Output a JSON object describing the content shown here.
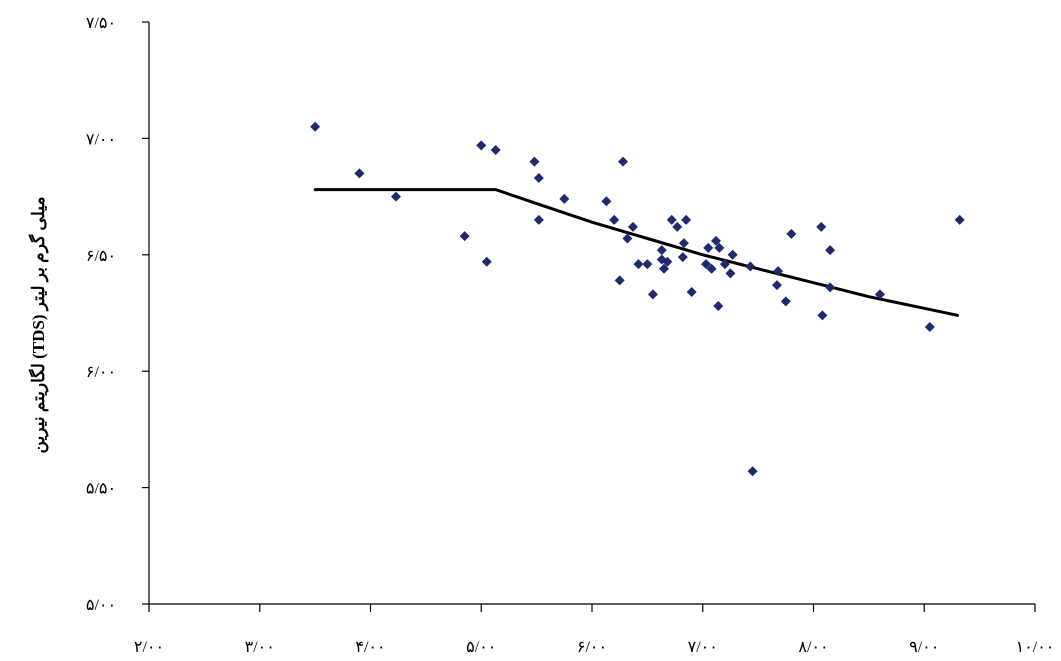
{
  "chart_data": {
    "type": "scatter",
    "ylabel": "لگاریتم نیرین (TDS) میلی گرم بر لیتر",
    "xlabel": "",
    "xlim": [
      2.0,
      10.0
    ],
    "ylim": [
      5.0,
      7.5
    ],
    "x_ticks": [
      2.0,
      3.0,
      4.0,
      5.0,
      6.0,
      7.0,
      8.0,
      9.0,
      10.0
    ],
    "y_ticks": [
      5.0,
      5.5,
      6.0,
      6.5,
      7.0,
      7.5
    ],
    "x_tick_labels": [
      "۲/۰۰",
      "۳/۰۰",
      "۴/۰۰",
      "۵/۰۰",
      "۶/۰۰",
      "۷/۰۰",
      "۸/۰۰",
      "۹/۰۰",
      "۱۰/۰۰"
    ],
    "y_tick_labels": [
      "۵/۰۰",
      "۵/۵۰",
      "۶/۰۰",
      "۶/۵۰",
      "۷/۰۰",
      "۷/۵۰"
    ],
    "grid": false,
    "marker_color": "#1f2a6e",
    "line_color": "#000000",
    "points": [
      [
        3.5,
        7.05
      ],
      [
        3.9,
        6.85
      ],
      [
        4.23,
        6.75
      ],
      [
        4.85,
        6.58
      ],
      [
        5.0,
        6.97
      ],
      [
        5.05,
        6.47
      ],
      [
        5.13,
        6.95
      ],
      [
        5.48,
        6.9
      ],
      [
        5.52,
        6.83
      ],
      [
        5.52,
        6.65
      ],
      [
        5.75,
        6.74
      ],
      [
        6.13,
        6.73
      ],
      [
        6.2,
        6.65
      ],
      [
        6.25,
        6.39
      ],
      [
        6.28,
        6.9
      ],
      [
        6.32,
        6.57
      ],
      [
        6.37,
        6.62
      ],
      [
        6.42,
        6.46
      ],
      [
        6.5,
        6.46
      ],
      [
        6.55,
        6.33
      ],
      [
        6.63,
        6.52
      ],
      [
        6.63,
        6.48
      ],
      [
        6.65,
        6.44
      ],
      [
        6.68,
        6.47
      ],
      [
        6.72,
        6.65
      ],
      [
        6.77,
        6.62
      ],
      [
        6.82,
        6.49
      ],
      [
        6.83,
        6.55
      ],
      [
        6.85,
        6.65
      ],
      [
        6.9,
        6.34
      ],
      [
        7.03,
        6.46
      ],
      [
        7.05,
        6.53
      ],
      [
        7.08,
        6.44
      ],
      [
        7.12,
        6.56
      ],
      [
        7.14,
        6.28
      ],
      [
        7.15,
        6.53
      ],
      [
        7.2,
        6.46
      ],
      [
        7.25,
        6.42
      ],
      [
        7.27,
        6.5
      ],
      [
        7.43,
        6.45
      ],
      [
        7.45,
        5.57
      ],
      [
        7.67,
        6.37
      ],
      [
        7.68,
        6.43
      ],
      [
        7.75,
        6.3
      ],
      [
        7.8,
        6.59
      ],
      [
        8.07,
        6.62
      ],
      [
        8.08,
        6.24
      ],
      [
        8.15,
        6.36
      ],
      [
        8.15,
        6.52
      ],
      [
        8.6,
        6.33
      ],
      [
        9.05,
        6.19
      ],
      [
        9.32,
        6.65
      ]
    ],
    "trend_line": [
      [
        3.5,
        6.78
      ],
      [
        5.13,
        6.78
      ],
      [
        5.5,
        6.72
      ],
      [
        6.0,
        6.64
      ],
      [
        6.5,
        6.57
      ],
      [
        7.0,
        6.5
      ],
      [
        7.5,
        6.44
      ],
      [
        8.0,
        6.38
      ],
      [
        8.5,
        6.32
      ],
      [
        9.0,
        6.27
      ],
      [
        9.3,
        6.24
      ]
    ]
  }
}
